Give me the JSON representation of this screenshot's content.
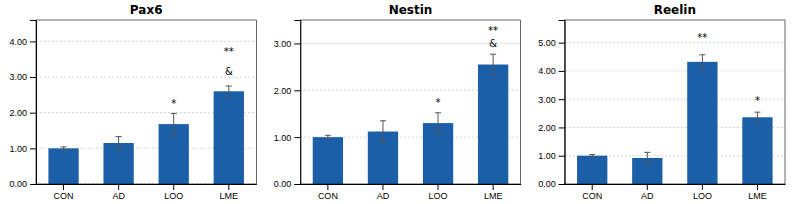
{
  "chart_data": [
    {
      "type": "bar",
      "title": "Pax6",
      "categories": [
        "CON",
        "AD",
        "LOO",
        "LME"
      ],
      "values": [
        1.0,
        1.15,
        1.68,
        2.6
      ],
      "errors": [
        0.04,
        0.18,
        0.3,
        0.15
      ],
      "color": "#1a5fa8",
      "ylim": [
        0,
        4.6
      ],
      "yticks": [
        {
          "value": 0.0,
          "label": "0.00"
        },
        {
          "value": 1.0,
          "label": "1.00"
        },
        {
          "value": 2.0,
          "label": "2.00"
        },
        {
          "value": 3.0,
          "label": "3.00"
        },
        {
          "value": 4.0,
          "label": "4.00"
        }
      ],
      "grid": true,
      "annotations": [
        {
          "category": "LOO",
          "text": "*",
          "y": 2.1
        },
        {
          "category": "LME",
          "text": "**",
          "y": 3.55
        },
        {
          "category": "LME",
          "text": "&",
          "y": 3.0
        }
      ]
    },
    {
      "type": "bar",
      "title": "Nestin",
      "categories": [
        "CON",
        "AD",
        "LOO",
        "LME"
      ],
      "values": [
        1.0,
        1.12,
        1.3,
        2.55
      ],
      "errors": [
        0.04,
        0.23,
        0.22,
        0.22
      ],
      "color": "#1a5fa8",
      "ylim": [
        0,
        3.5
      ],
      "yticks": [
        {
          "value": 0.0,
          "label": "0.00"
        },
        {
          "value": 1.0,
          "label": "1.00"
        },
        {
          "value": 2.0,
          "label": "2.00"
        },
        {
          "value": 3.0,
          "label": "3.00"
        }
      ],
      "grid": true,
      "annotations": [
        {
          "category": "LOO",
          "text": "*",
          "y": 1.63
        },
        {
          "category": "LME",
          "text": "**",
          "y": 3.15
        },
        {
          "category": "LME",
          "text": "&",
          "y": 2.88
        }
      ]
    },
    {
      "type": "bar",
      "title": "Reelin",
      "categories": [
        "CON",
        "AD",
        "LOO",
        "LME"
      ],
      "values": [
        1.0,
        0.92,
        4.32,
        2.36
      ],
      "errors": [
        0.04,
        0.2,
        0.25,
        0.18
      ],
      "color": "#1a5fa8",
      "ylim": [
        0,
        5.8
      ],
      "yticks": [
        {
          "value": 0.0,
          "label": "0.00"
        },
        {
          "value": 1.0,
          "label": "1.00"
        },
        {
          "value": 2.0,
          "label": "2.00"
        },
        {
          "value": 3.0,
          "label": "3.00"
        },
        {
          "value": 4.0,
          "label": "4.00"
        },
        {
          "value": 5.0,
          "label": "5.00"
        }
      ],
      "grid": true,
      "annotations": [
        {
          "category": "LOO",
          "text": "**",
          "y": 5.0
        },
        {
          "category": "LME",
          "text": "*",
          "y": 2.75
        }
      ]
    }
  ]
}
